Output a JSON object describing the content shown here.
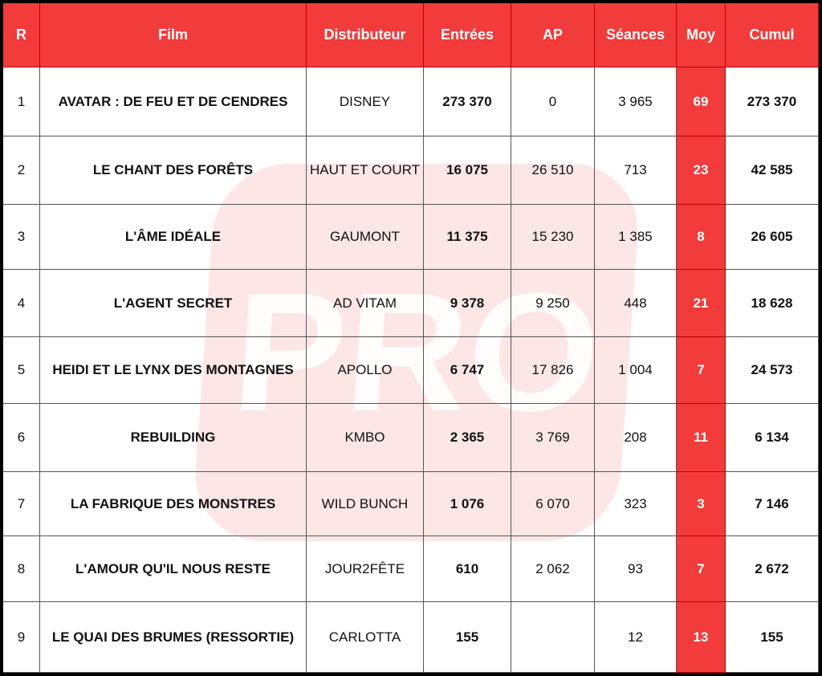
{
  "watermark": "PRO",
  "table": {
    "header": [
      "R",
      "Film",
      "Distributeur",
      "Entrées",
      "AP",
      "Séances",
      "Moy",
      "Cumul"
    ],
    "rows": [
      [
        "1",
        "AVATAR : DE FEU ET DE CENDRES",
        "DISNEY",
        "273 370",
        "0",
        "3 965",
        "69",
        "273 370"
      ],
      [
        "2",
        "LE CHANT DES FORÊTS",
        "HAUT ET COURT",
        "16 075",
        "26 510",
        "713",
        "23",
        "42 585"
      ],
      [
        "3",
        "L'ÂME IDÉALE",
        "GAUMONT",
        "11 375",
        "15 230",
        "1 385",
        "8",
        "26 605"
      ],
      [
        "4",
        "L'AGENT SECRET",
        "AD VITAM",
        "9 378",
        "9 250",
        "448",
        "21",
        "18 628"
      ],
      [
        "5",
        "HEIDI ET LE LYNX DES MONTAGNES",
        "APOLLO",
        "6 747",
        "17 826",
        "1 004",
        "7",
        "24 573"
      ],
      [
        "6",
        "REBUILDING",
        "KMBO",
        "2 365",
        "3 769",
        "208",
        "11",
        "6 134"
      ],
      [
        "7",
        "LA FABRIQUE DES MONSTRES",
        "WILD BUNCH",
        "1 076",
        "6 070",
        "323",
        "3",
        "7 146"
      ],
      [
        "8",
        "L'AMOUR QU'IL NOUS RESTE",
        "JOUR2FÊTE",
        "610",
        "2 062",
        "93",
        "7",
        "2 672"
      ],
      [
        "9",
        "LE QUAI DES BRUMES (RESSORTIE)",
        "CARLOTTA",
        "155",
        null,
        "12",
        "13",
        "155"
      ]
    ]
  }
}
